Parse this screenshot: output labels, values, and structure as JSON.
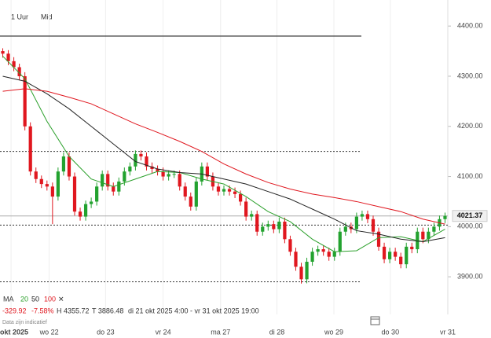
{
  "ui": {
    "toolbar": [
      "1 Uur",
      "Mid"
    ],
    "ma_label": "MA",
    "ma_close": "✕",
    "stats": [
      "-329.92",
      "-7.58%",
      "H 4355.72",
      "T 3886.48"
    ],
    "range": "di 21 okt 2025 4:00 - vr 31 okt 2025 19:00",
    "note": "Data zijn indicatief"
  },
  "chart_data": {
    "type": "candlestick",
    "up_color": "#23a22f",
    "down_color": "#e0171f",
    "open": [
      4350,
      4345,
      4330,
      4318,
      4300,
      4200,
      4110,
      4095,
      4085,
      4080,
      4060,
      4110,
      4140,
      4100,
      4030,
      4020,
      4045,
      4050,
      4080,
      4105,
      4080,
      4070,
      4090,
      4110,
      4120,
      4145,
      4140,
      4120,
      4115,
      4110,
      4100,
      4105,
      4105,
      4080,
      4060,
      4040,
      4090,
      4120,
      4100,
      4080,
      4070,
      4075,
      4070,
      4065,
      4050,
      4020,
      4025,
      3990,
      4000,
      4005,
      3995,
      4010,
      3975,
      3950,
      3920,
      3895,
      3930,
      3950,
      3955,
      3950,
      3940,
      3950,
      3990,
      4000,
      3995,
      4020,
      4025,
      4015,
      3990,
      3960,
      3935,
      3950,
      3940,
      3925,
      3960,
      3955,
      3990,
      3975,
      3990,
      4000,
      4015
    ],
    "high": [
      4355.72,
      4352,
      4338,
      4325,
      4308,
      4208,
      4118,
      4102,
      4092,
      4088,
      4118,
      4148,
      4148,
      4108,
      4038,
      4052,
      4058,
      4088,
      4112,
      4112,
      4088,
      4098,
      4118,
      4128,
      4152,
      4152,
      4148,
      4128,
      4122,
      4118,
      4112,
      4112,
      4112,
      4088,
      4068,
      4098,
      4128,
      4128,
      4108,
      4088,
      4082,
      4082,
      4078,
      4072,
      4058,
      4032,
      4032,
      4008,
      4012,
      4012,
      4018,
      4018,
      3982,
      3958,
      3928,
      3938,
      3958,
      3962,
      3962,
      3958,
      3958,
      3998,
      4008,
      4008,
      4028,
      4032,
      4032,
      4022,
      3998,
      3968,
      3958,
      3958,
      3948,
      3968,
      3968,
      3998,
      3998,
      3998,
      4008,
      4022,
      4028
    ],
    "low": [
      4337,
      4322,
      4310,
      4292,
      4192,
      4102,
      4087,
      4077,
      4072,
      4005,
      4052,
      4102,
      4092,
      4022,
      4012,
      4012,
      4037,
      4042,
      4072,
      4072,
      4062,
      4062,
      4082,
      4102,
      4112,
      4132,
      4112,
      4107,
      4102,
      4092,
      4092,
      4097,
      4072,
      4052,
      4032,
      4032,
      4082,
      4092,
      4072,
      4062,
      4062,
      4062,
      4057,
      4042,
      4012,
      4012,
      3982,
      3982,
      3992,
      3987,
      3987,
      3967,
      3942,
      3912,
      3886.48,
      3887,
      3922,
      3942,
      3942,
      3932,
      3932,
      3942,
      3982,
      3987,
      3987,
      4012,
      4007,
      3982,
      3952,
      3927,
      3927,
      3932,
      3917,
      3917,
      3947,
      3947,
      3967,
      3967,
      3982,
      3992,
      4007
    ],
    "close": [
      4345,
      4330,
      4318,
      4300,
      4200,
      4110,
      4095,
      4085,
      4080,
      4060,
      4110,
      4140,
      4100,
      4030,
      4020,
      4045,
      4050,
      4080,
      4105,
      4080,
      4070,
      4090,
      4110,
      4120,
      4145,
      4140,
      4120,
      4115,
      4110,
      4100,
      4105,
      4105,
      4080,
      4060,
      4040,
      4090,
      4120,
      4100,
      4080,
      4070,
      4075,
      4070,
      4065,
      4050,
      4020,
      4025,
      3990,
      4000,
      4005,
      3995,
      4010,
      3975,
      3950,
      3920,
      3895,
      3930,
      3950,
      3955,
      3950,
      3940,
      3950,
      3990,
      4000,
      3995,
      4020,
      4025,
      4015,
      3990,
      3960,
      3935,
      3950,
      3940,
      3925,
      3960,
      3955,
      3990,
      3975,
      3990,
      4000,
      4015,
      4021.37
    ],
    "series": [
      {
        "name": "20",
        "color": "#2ca02c",
        "x": [
          0,
          4,
          8,
          12,
          16,
          20,
          24,
          28,
          32,
          36,
          40,
          44,
          48,
          52,
          56,
          60,
          64,
          68,
          72,
          76,
          80
        ],
        "values": [
          4340,
          4295,
          4210,
          4140,
          4095,
          4080,
          4095,
          4110,
          4108,
          4095,
          4085,
          4060,
          4030,
          4010,
          3975,
          3950,
          3952,
          3978,
          3980,
          3970,
          3995
        ]
      },
      {
        "name": "50",
        "color": "#222222",
        "x": [
          0,
          4,
          8,
          12,
          16,
          20,
          24,
          28,
          32,
          36,
          40,
          44,
          48,
          52,
          56,
          60,
          64,
          68,
          72,
          76,
          80
        ],
        "values": [
          4300,
          4290,
          4265,
          4235,
          4200,
          4165,
          4130,
          4115,
          4108,
          4105,
          4095,
          4085,
          4070,
          4055,
          4035,
          4015,
          3992,
          3985,
          3975,
          3970,
          3978
        ]
      },
      {
        "name": "100",
        "color": "#e0171f",
        "x": [
          0,
          4,
          8,
          12,
          16,
          20,
          24,
          28,
          32,
          36,
          40,
          44,
          48,
          52,
          56,
          60,
          64,
          68,
          72,
          76,
          80
        ],
        "values": [
          4270,
          4275,
          4270,
          4258,
          4245,
          4225,
          4205,
          4188,
          4170,
          4150,
          4125,
          4105,
          4088,
          4075,
          4065,
          4058,
          4050,
          4040,
          4030,
          4015,
          4005
        ]
      }
    ],
    "levels": [
      {
        "value": 4380,
        "style": "solid"
      },
      {
        "value": 4150,
        "style": "dotted"
      },
      {
        "value": 4003,
        "style": "dotted"
      },
      {
        "value": 3890,
        "style": "dotted"
      }
    ],
    "xlim": [
      -0.5,
      80.5
    ],
    "ylim": [
      3872,
      4452
    ],
    "xticks": [
      {
        "value": 1.5,
        "label": "okt 2025"
      },
      {
        "value": 8.4,
        "label": "wo 22"
      },
      {
        "value": 18.6,
        "label": "do 23"
      },
      {
        "value": 29,
        "label": "vr 24"
      },
      {
        "value": 39.4,
        "label": "ma 27"
      },
      {
        "value": 49.6,
        "label": "di 28"
      },
      {
        "value": 59.9,
        "label": "wo 29"
      },
      {
        "value": 70.1,
        "label": "do 30"
      },
      {
        "value": 80.5,
        "label": "vr 31"
      }
    ],
    "yticks": [
      {
        "value": 3900,
        "label": "3900.00"
      },
      {
        "value": 4000,
        "label": "4000.00"
      },
      {
        "value": 4100,
        "label": "4100.00"
      },
      {
        "value": 4200,
        "label": "4200.00"
      },
      {
        "value": 4300,
        "label": "4300.00"
      },
      {
        "value": 4400,
        "label": "4400.00"
      }
    ],
    "grid": true
  }
}
